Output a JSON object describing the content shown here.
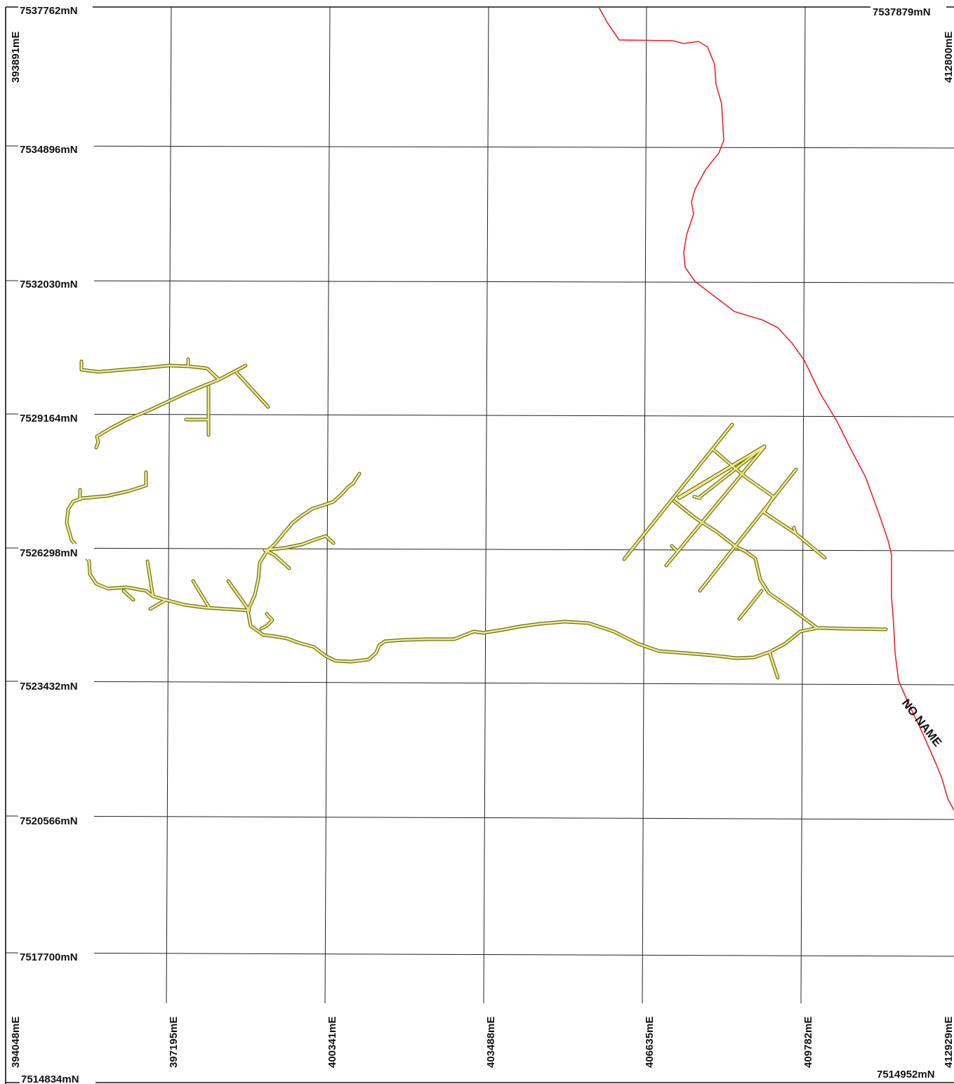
{
  "map": {
    "northing_labels_left": [
      "7537762mN",
      "7534896mN",
      "7532030mN",
      "7529164mN",
      "7526298mN",
      "7523432mN",
      "7520566mN",
      "7517700mN"
    ],
    "northing_top_right": "7537879mN",
    "northing_bottom_left": "7514834mN",
    "northing_bottom_right": "7514952mN",
    "easting_top_left": "393891mE",
    "easting_top_right": "412800mE",
    "easting_labels_bottom": [
      "394048mE",
      "397195mE",
      "400341mE",
      "403488mE",
      "406635mE",
      "409782mE",
      "412929mE"
    ],
    "river_name": "NO NAME",
    "colors": {
      "grid": "#222222",
      "river": "#e8242f",
      "road_fill": "#eeec8a",
      "road_casing": "#6f6a10",
      "background": "#ffffff"
    }
  }
}
